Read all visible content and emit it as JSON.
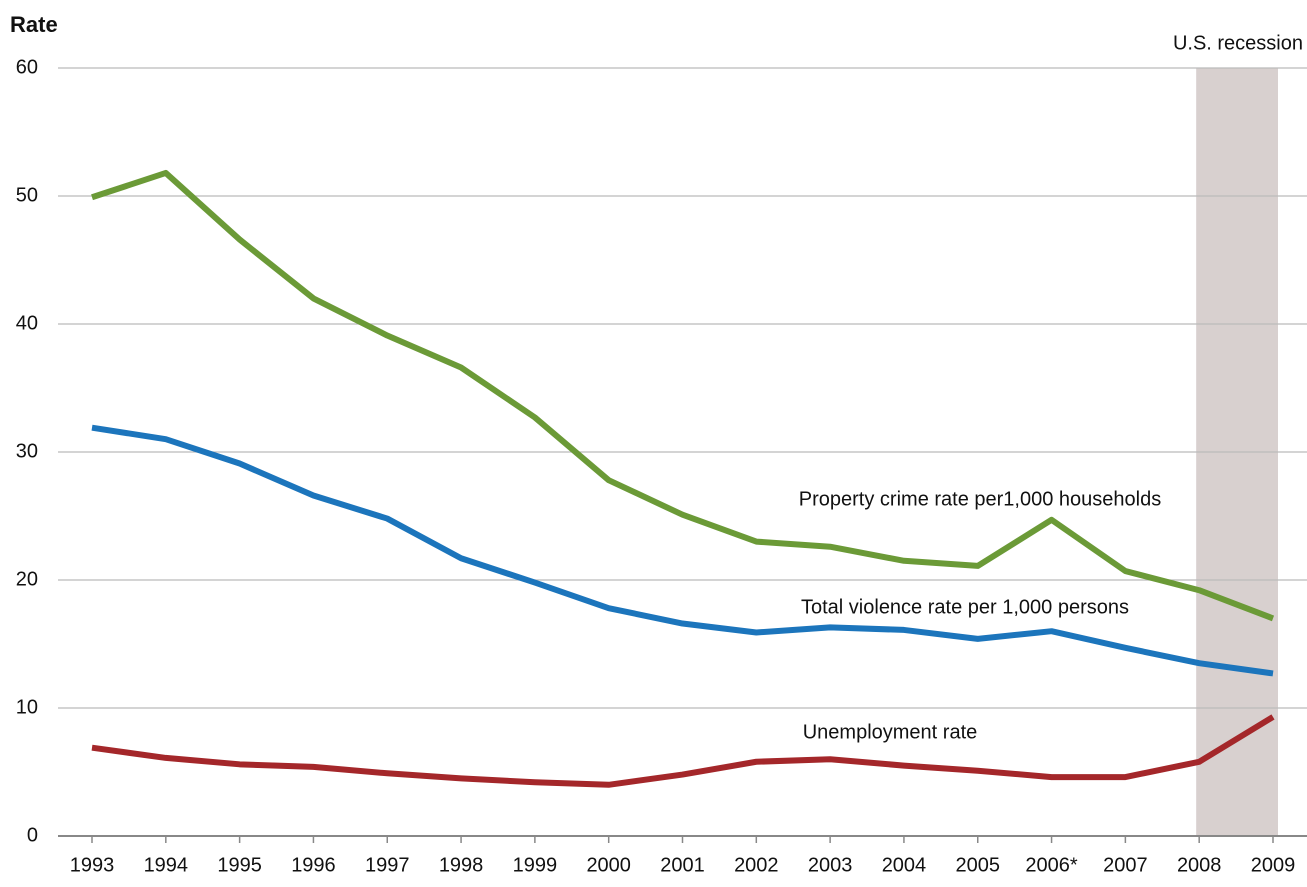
{
  "chart_data": {
    "type": "line",
    "y_label": "Rate",
    "categories": [
      "1993",
      "1994",
      "1995",
      "1996",
      "1997",
      "1998",
      "1999",
      "2000",
      "2001",
      "2002",
      "2003",
      "2004",
      "2005",
      "2006*",
      "2007",
      "2008",
      "2009"
    ],
    "series": [
      {
        "name": "Property crime rate per1,000 households",
        "color": "#6b9a37",
        "values": [
          49.9,
          51.8,
          46.6,
          42.0,
          39.1,
          36.6,
          32.7,
          27.8,
          25.1,
          23.0,
          22.6,
          21.5,
          21.1,
          24.7,
          20.7,
          19.2,
          17.0
        ]
      },
      {
        "name": "Total violence rate per 1,000 persons",
        "color": "#1c75bc",
        "values": [
          31.9,
          31.0,
          29.1,
          26.6,
          24.8,
          21.7,
          19.8,
          17.8,
          16.6,
          15.9,
          16.3,
          16.1,
          15.4,
          16.0,
          14.7,
          13.5,
          12.7
        ]
      },
      {
        "name": "Unemployment rate",
        "color": "#a4272a",
        "values": [
          6.9,
          6.1,
          5.6,
          5.4,
          4.9,
          4.5,
          4.2,
          4.0,
          4.8,
          5.8,
          6.0,
          5.5,
          5.1,
          4.6,
          4.6,
          5.8,
          9.3
        ]
      }
    ],
    "shaded_period": {
      "label": "U.S. recession",
      "span": [
        "2008",
        "2009"
      ],
      "color": "#d8d0cf"
    },
    "ylim": [
      0,
      60
    ],
    "yticks": [
      0,
      10,
      20,
      30,
      40,
      50,
      60
    ],
    "grid": true
  }
}
